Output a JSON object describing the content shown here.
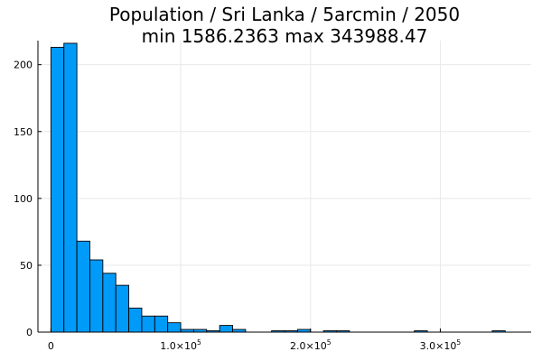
{
  "chart_data": {
    "type": "bar",
    "title": "Population / Sri Lanka / 5arcmin / 2050",
    "subtitle": "min 1586.2363  max 343988.47",
    "xlabel": "",
    "ylabel": "",
    "bin_width": 10000,
    "bin_start": 0,
    "counts": [
      213,
      216,
      68,
      54,
      44,
      35,
      18,
      12,
      12,
      7,
      2,
      2,
      1,
      5,
      2,
      0,
      0,
      1,
      1,
      2,
      0,
      1,
      1,
      0,
      0,
      0,
      0,
      0,
      1,
      0,
      0,
      0,
      0,
      0,
      1
    ],
    "xlim": [
      -10000,
      370000
    ],
    "ylim": [
      0,
      218
    ],
    "x_ticks": [
      {
        "value": 0,
        "label": "0",
        "exp": ""
      },
      {
        "value": 100000,
        "label": "1.0×10",
        "exp": "5"
      },
      {
        "value": 200000,
        "label": "2.0×10",
        "exp": "5"
      },
      {
        "value": 300000,
        "label": "3.0×10",
        "exp": "5"
      }
    ],
    "y_ticks": [
      {
        "value": 0,
        "label": "0"
      },
      {
        "value": 50,
        "label": "50"
      },
      {
        "value": 100,
        "label": "100"
      },
      {
        "value": 150,
        "label": "150"
      },
      {
        "value": 200,
        "label": "200"
      }
    ],
    "grid": true,
    "legend": false,
    "bar_color": "#009af9",
    "edge_color": "#000000"
  }
}
